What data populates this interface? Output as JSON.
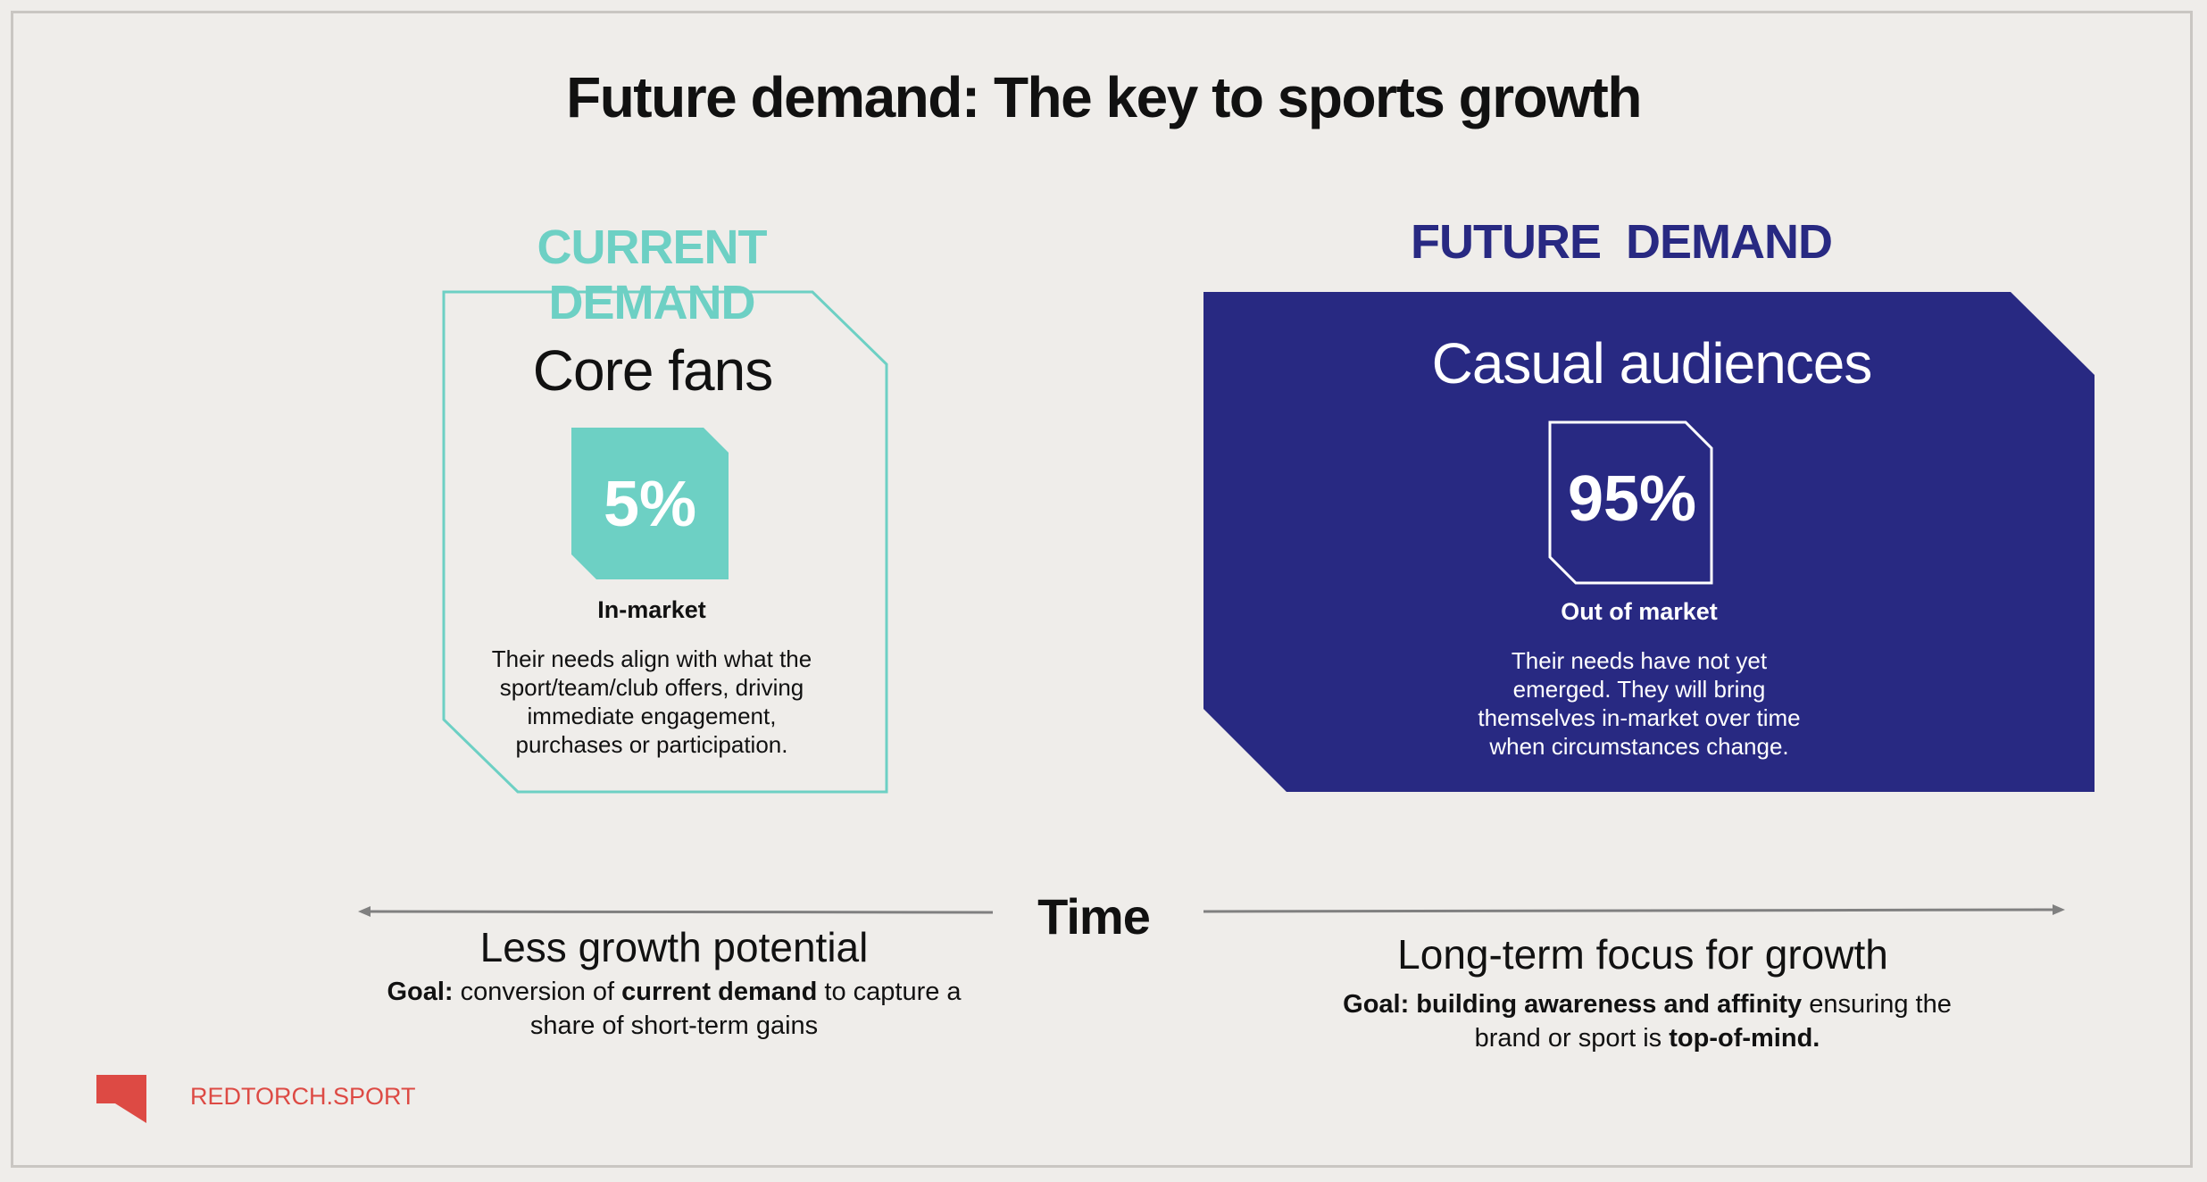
{
  "title": "Future demand: The key to sports growth",
  "current": {
    "heading": "CURRENT DEMAND",
    "card_title": "Core fans",
    "percent": "5%",
    "market": "In-market",
    "description_lines": [
      "Their needs align with what the",
      "sport/team/club offers, driving",
      "immediate engagement,",
      "purchases or participation."
    ]
  },
  "future": {
    "heading": "FUTURE  DEMAND",
    "card_title": "Casual audiences",
    "percent": "95%",
    "market": "Out of market",
    "description_lines": [
      "Their needs have not yet",
      "emerged. They will bring",
      "themselves in-market over time",
      "when circumstances change."
    ]
  },
  "timeline": {
    "label": "Time",
    "left_title": "Less growth potential",
    "left_goal": {
      "line1": [
        {
          "text": "Goal:",
          "bold": true
        },
        {
          "text": " conversion of ",
          "bold": false
        },
        {
          "text": "current demand",
          "bold": true
        },
        {
          "text": " to capture a",
          "bold": false
        }
      ],
      "line2": [
        {
          "text": "share of short-term gains",
          "bold": false
        }
      ]
    },
    "right_title": "Long-term focus for growth",
    "right_goal": {
      "line1": [
        {
          "text": "Goal: building awareness and affinity",
          "bold": true
        },
        {
          "text": " ensuring the",
          "bold": false
        }
      ],
      "line2": [
        {
          "text": "brand or sport is ",
          "bold": false
        },
        {
          "text": "top-of-mind.",
          "bold": true
        }
      ]
    }
  },
  "brand": "REDTORCH.SPORT",
  "colors": {
    "background": "#efedea",
    "teal": "#6dd0c4",
    "navy": "#282982",
    "brand_red": "#dd4a44",
    "arrow_gray": "#808080"
  },
  "icons": {
    "brand_logo": "redtorch-logo-icon",
    "left_arrow": "arrow-left-icon",
    "right_arrow": "arrow-right-icon"
  }
}
